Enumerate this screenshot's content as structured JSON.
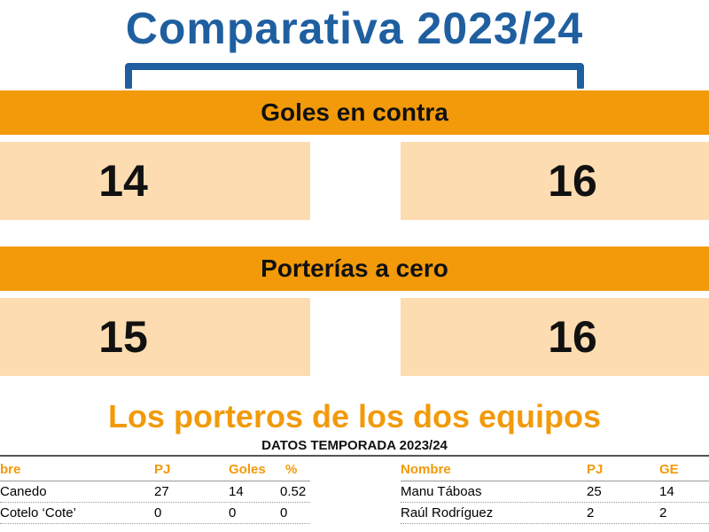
{
  "header": {
    "title": "Comparativa 2023/24"
  },
  "sections": [
    {
      "label": "Goles en contra",
      "left_value": "14",
      "right_value": "16"
    },
    {
      "label": "Porterías a cero",
      "left_value": "15",
      "right_value": "16"
    }
  ],
  "goalkeepers": {
    "title": "Los porteros de los dos equipos",
    "season": "DATOS TEMPORADA 2023/24",
    "left_table": {
      "headers": [
        "bre",
        "PJ",
        "Goles",
        "%"
      ],
      "rows": [
        [
          "Canedo",
          "27",
          "14",
          "0.52"
        ],
        [
          "Cotelo ‘Cote’",
          "0",
          "0",
          "0"
        ]
      ]
    },
    "right_table": {
      "headers": [
        "Nombre",
        "PJ",
        "GE"
      ],
      "rows": [
        [
          "Manu Táboas",
          "25",
          "14"
        ],
        [
          "Raúl Rodríguez",
          "2",
          "2"
        ]
      ]
    }
  },
  "colors": {
    "title_blue": "#1f5fa0",
    "orange": "#f29a09",
    "light_orange": "#fcdcb0"
  }
}
